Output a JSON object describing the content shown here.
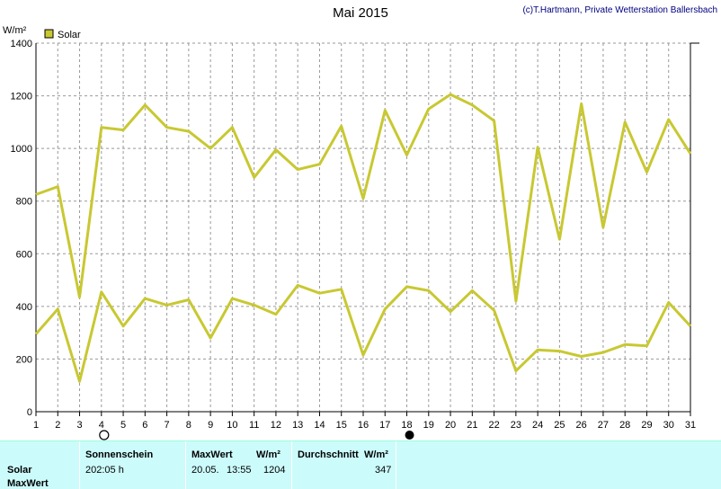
{
  "header": {
    "title": "Mai 2015",
    "credit": "(c)T.Hartmann, Private Wetterstation Ballersbach"
  },
  "chart_data": {
    "type": "line",
    "ylabel": "W/m²",
    "ylim": [
      0,
      1400
    ],
    "yticks": [
      0,
      200,
      400,
      600,
      800,
      1000,
      1200,
      1400
    ],
    "x": [
      1,
      2,
      3,
      4,
      5,
      6,
      7,
      8,
      9,
      10,
      11,
      12,
      13,
      14,
      15,
      16,
      17,
      18,
      19,
      20,
      21,
      22,
      23,
      24,
      25,
      26,
      27,
      28,
      29,
      30,
      31
    ],
    "grid": true,
    "legend": {
      "position": "top-left",
      "entries": [
        "Solar"
      ]
    },
    "moon_markers": {
      "full_moon_day": 4,
      "new_moon_day": 18
    },
    "series": [
      {
        "name": "Solar",
        "color": "#c8c832",
        "values": [
          825,
          855,
          435,
          1080,
          1070,
          1165,
          1080,
          1065,
          1000,
          1080,
          890,
          995,
          920,
          940,
          1085,
          810,
          1145,
          975,
          1150,
          1205,
          1165,
          1105,
          420,
          1005,
          655,
          1170,
          700,
          1100,
          910,
          1110,
          980
        ]
      },
      {
        "color": "#c8c832",
        "values": [
          295,
          390,
          115,
          455,
          325,
          430,
          405,
          425,
          280,
          430,
          405,
          370,
          480,
          450,
          465,
          215,
          390,
          475,
          460,
          380,
          460,
          385,
          155,
          235,
          230,
          210,
          225,
          255,
          250,
          415,
          325
        ]
      }
    ]
  },
  "summary": {
    "row_label": "Solar",
    "row_label2": "MaxWert",
    "sonnenschein": {
      "header": "Sonnenschein",
      "value": "202:05 h"
    },
    "maxwert": {
      "header": "MaxWert",
      "unit": "W/m²",
      "date": "20.05.",
      "time": "13:55",
      "value": "1204"
    },
    "durchschnitt": {
      "header": "Durchschnitt",
      "unit": "W/m²",
      "value": "347"
    }
  }
}
